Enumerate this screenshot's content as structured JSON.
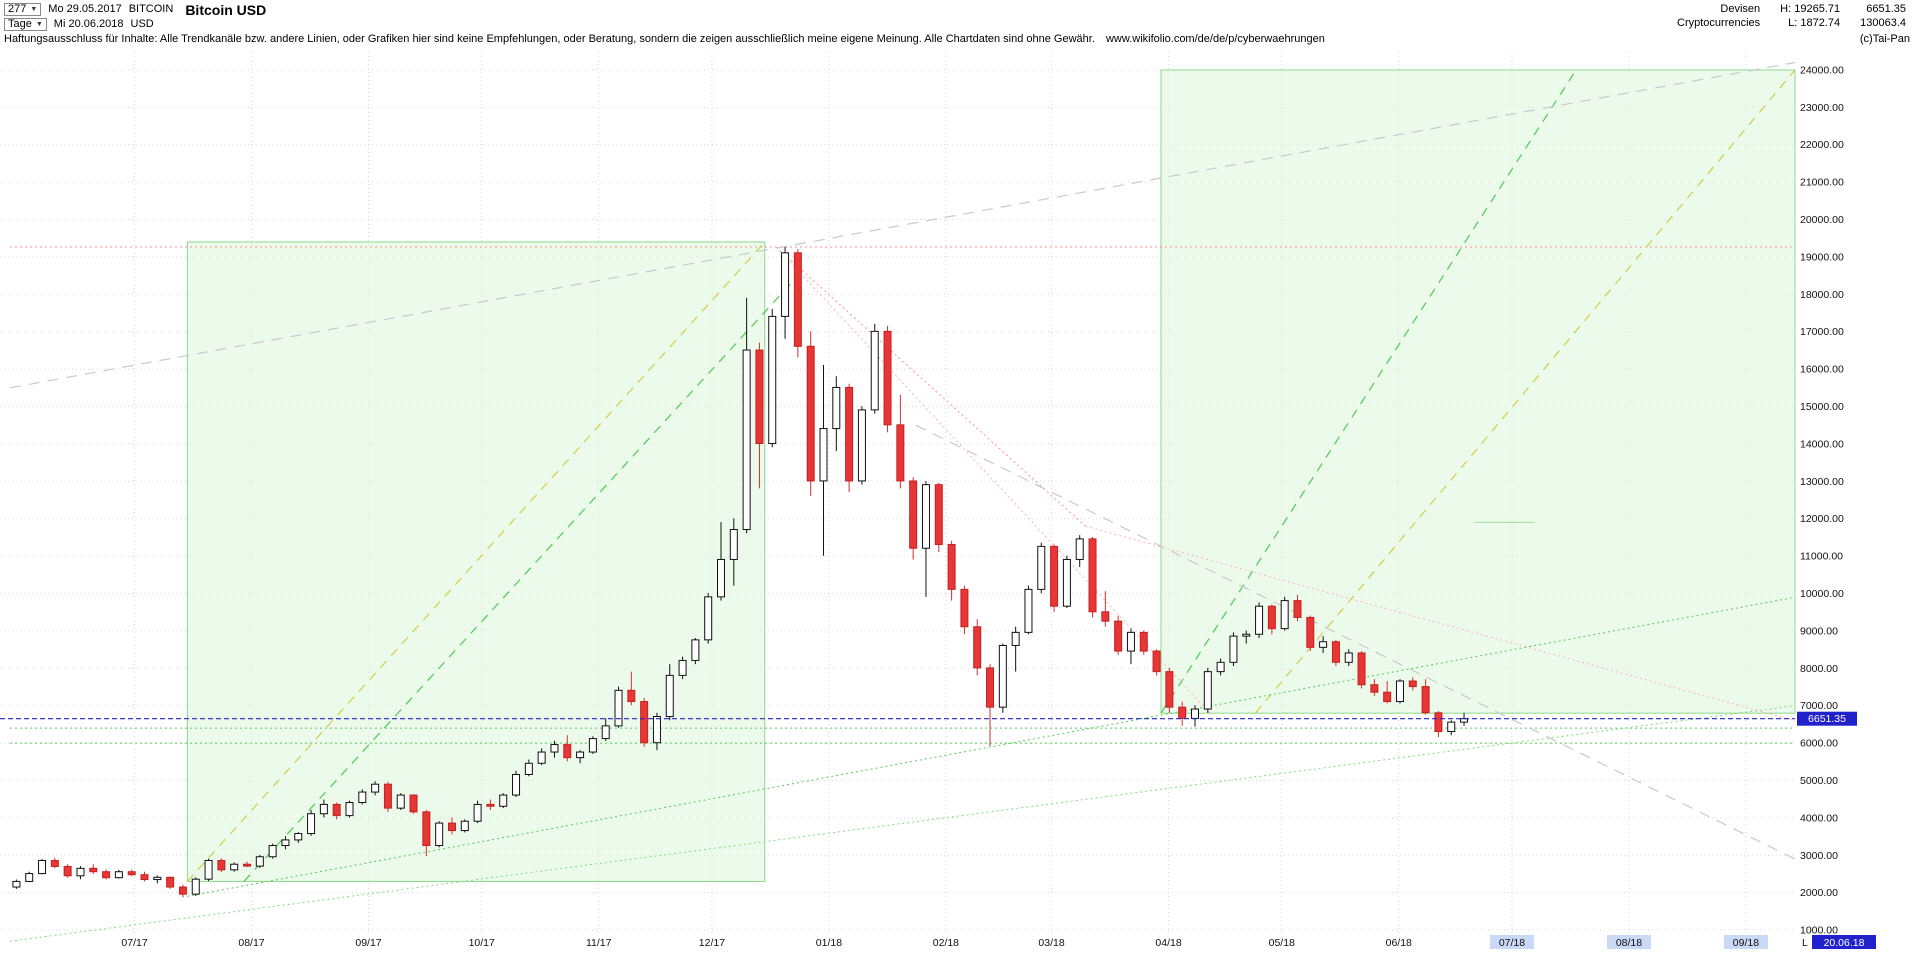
{
  "header": {
    "bars_count": "277",
    "date_from": "Mo 29.05.2017",
    "symbol": "BITCOIN",
    "period": "Tage",
    "date_to": "Mi 20.06.2018",
    "currency": "USD",
    "title": "Bitcoin USD",
    "category": "Devisen",
    "subcategory": "Cryptocurrencies",
    "high": "H: 19265.71",
    "low": "L: 1872.74",
    "last": "6651.35",
    "volume": "130063.4"
  },
  "disclaimer": {
    "text": "Haftungsausschluss für Inhalte: Alle Trendkanäle bzw. andere Linien, oder Grafiken hier sind keine Empfehlungen, oder Beratung, sondern die zeigen ausschließlich meine eigene Meinung. Alle Chartdaten sind ohne Gewähr.",
    "url": "www.wikifolio.com/de/de/p/cyberwaehrungen",
    "copyright": "(c)Tai-Pan"
  },
  "icons": {
    "dropdown": "▼"
  },
  "chart_data": {
    "type": "candlestick",
    "title": "Bitcoin USD",
    "x_unit": "days since 2017-05-29",
    "x_domain": [
      0,
      473
    ],
    "y_domain": [
      600,
      24400
    ],
    "high": 19265.71,
    "low": 1872.74,
    "last": 6651.35,
    "grid": true,
    "y_ticks": [
      1000,
      2000,
      3000,
      4000,
      5000,
      6000,
      7000,
      8000,
      9000,
      10000,
      11000,
      12000,
      13000,
      14000,
      15000,
      16000,
      17000,
      18000,
      19000,
      20000,
      21000,
      22000,
      23000,
      24000
    ],
    "x_ticks": [
      {
        "d": 33,
        "label": "07/17"
      },
      {
        "d": 64,
        "label": "08/17"
      },
      {
        "d": 95,
        "label": "09/17"
      },
      {
        "d": 125,
        "label": "10/17"
      },
      {
        "d": 156,
        "label": "11/17"
      },
      {
        "d": 186,
        "label": "12/17"
      },
      {
        "d": 217,
        "label": "01/18"
      },
      {
        "d": 248,
        "label": "02/18"
      },
      {
        "d": 276,
        "label": "03/18"
      },
      {
        "d": 307,
        "label": "04/18"
      },
      {
        "d": 337,
        "label": "05/18"
      },
      {
        "d": 368,
        "label": "06/18"
      },
      {
        "d": 398,
        "label": "07/18",
        "future": true
      },
      {
        "d": 429,
        "label": "08/18",
        "future": true
      },
      {
        "d": 460,
        "label": "09/18",
        "future": true
      }
    ],
    "x_axis_end": {
      "marker": "L",
      "date": "20.06.18"
    },
    "last_price_line": {
      "price": 6651.35,
      "label": "6651.35",
      "color": "#2222cc"
    },
    "candle_step_days": 3.3947,
    "colors": {
      "up_fill": "#ffffff",
      "up_stroke": "#111111",
      "down_fill": "#e83535",
      "down_stroke": "#c22222",
      "wick_up": "#111111",
      "wick_down": "#d32f2f",
      "grid": "#d6d6d6",
      "future_label_bg": "#c9d9f6",
      "axis_text": "#111111"
    },
    "boxes": [
      {
        "name": "trend-channel-2017",
        "from": [
          47,
          2300
        ],
        "to": [
          200,
          19400
        ],
        "fill": "#ddf6dd",
        "opacity": 0.55,
        "stroke": "#8bd88b"
      },
      {
        "name": "trend-channel-2018",
        "from": [
          305,
          6800
        ],
        "to": [
          473,
          24000
        ],
        "fill": "#ddf6dd",
        "opacity": 0.55,
        "stroke": "#8bd88b"
      }
    ],
    "lines": [
      {
        "name": "ath-resistance",
        "from": [
          0,
          19265.71
        ],
        "to": [
          473,
          19265.71
        ],
        "color": "#ff9090",
        "dash": "2,3",
        "w": 1
      },
      {
        "name": "support-6400",
        "from": [
          0,
          6400
        ],
        "to": [
          473,
          6400
        ],
        "color": "#55cc55",
        "dash": "2,3",
        "w": 1
      },
      {
        "name": "support-6000",
        "from": [
          0,
          6000
        ],
        "to": [
          473,
          6000
        ],
        "color": "#55cc55",
        "dash": "2,3",
        "w": 1
      },
      {
        "name": "uptrend-2017-yellow",
        "from": [
          47,
          2300
        ],
        "to": [
          200,
          19400
        ],
        "color": "#cfcf45",
        "dash": "9,7",
        "w": 1.2
      },
      {
        "name": "uptrend-2017-green",
        "from": [
          62,
          2300
        ],
        "to": [
          207,
          18300
        ],
        "color": "#4ecb4e",
        "dash": "9,7",
        "w": 1.2
      },
      {
        "name": "projection-green",
        "from": [
          305,
          6800
        ],
        "to": [
          415,
          24000
        ],
        "color": "#4ecb4e",
        "dash": "9,7",
        "w": 1.2
      },
      {
        "name": "projection-yellow",
        "from": [
          330,
          6800
        ],
        "to": [
          473,
          24000
        ],
        "color": "#cfcf45",
        "dash": "9,7",
        "w": 1.2
      },
      {
        "name": "downtrend-red-1",
        "from": [
          203,
          19265
        ],
        "to": [
          285,
          11800
        ],
        "color": "#ff9090",
        "dash": "2,3",
        "w": 1
      },
      {
        "name": "downtrend-red-2",
        "from": [
          285,
          11800
        ],
        "to": [
          473,
          6600
        ],
        "color": "#ffb0b0",
        "dash": "2,3",
        "w": 1
      },
      {
        "name": "downtrend-red-3",
        "from": [
          203,
          19265
        ],
        "to": [
          318,
          6800
        ],
        "color": "#ffb0b0",
        "dash": "2,3",
        "w": 1
      },
      {
        "name": "longterm-gray-top",
        "from": [
          0,
          15500
        ],
        "to": [
          473,
          24200
        ],
        "color": "#c9c9c9",
        "dash": "11,8",
        "w": 1.2
      },
      {
        "name": "downtrend-gray",
        "from": [
          240,
          14500
        ],
        "to": [
          473,
          2900
        ],
        "color": "#c9c9c9",
        "dash": "11,8",
        "w": 1.2
      },
      {
        "name": "longterm-green-support",
        "from": [
          47,
          1900
        ],
        "to": [
          473,
          9900
        ],
        "color": "#55cc55",
        "dash": "2,3",
        "w": 1
      },
      {
        "name": "longterm-green-support-2",
        "from": [
          0,
          700
        ],
        "to": [
          473,
          7000
        ],
        "color": "#7edc7e",
        "dash": "2,3",
        "w": 1
      },
      {
        "name": "level-mark-11900",
        "from": [
          388,
          11900
        ],
        "to": [
          404,
          11900
        ],
        "color": "#9ae09a",
        "dash": "",
        "w": 1
      }
    ],
    "candles": [
      [
        2150,
        2350,
        2100,
        2300
      ],
      [
        2300,
        2560,
        2280,
        2510
      ],
      [
        2510,
        2900,
        2490,
        2860
      ],
      [
        2860,
        2930,
        2650,
        2700
      ],
      [
        2700,
        2760,
        2400,
        2450
      ],
      [
        2450,
        2710,
        2360,
        2650
      ],
      [
        2650,
        2760,
        2500,
        2560
      ],
      [
        2560,
        2620,
        2350,
        2400
      ],
      [
        2400,
        2610,
        2380,
        2560
      ],
      [
        2560,
        2620,
        2440,
        2480
      ],
      [
        2480,
        2560,
        2300,
        2350
      ],
      [
        2350,
        2460,
        2250,
        2410
      ],
      [
        2410,
        2430,
        2100,
        2150
      ],
      [
        2150,
        2210,
        1873,
        1960
      ],
      [
        1960,
        2410,
        1910,
        2360
      ],
      [
        2360,
        2910,
        2310,
        2860
      ],
      [
        2860,
        2920,
        2550,
        2610
      ],
      [
        2610,
        2810,
        2560,
        2760
      ],
      [
        2760,
        2830,
        2680,
        2710
      ],
      [
        2710,
        3010,
        2660,
        2960
      ],
      [
        2960,
        3310,
        2910,
        3260
      ],
      [
        3260,
        3510,
        3160,
        3410
      ],
      [
        3410,
        3620,
        3330,
        3580
      ],
      [
        3580,
        4210,
        3520,
        4110
      ],
      [
        4110,
        4490,
        4010,
        4360
      ],
      [
        4360,
        4410,
        3960,
        4060
      ],
      [
        4060,
        4460,
        4010,
        4410
      ],
      [
        4410,
        4760,
        4360,
        4690
      ],
      [
        4690,
        4980,
        4600,
        4900
      ],
      [
        4900,
        4960,
        4160,
        4260
      ],
      [
        4260,
        4660,
        4210,
        4610
      ],
      [
        4610,
        4630,
        4110,
        4160
      ],
      [
        4160,
        4210,
        2980,
        3260
      ],
      [
        3260,
        3910,
        3210,
        3860
      ],
      [
        3860,
        4010,
        3560,
        3660
      ],
      [
        3660,
        3960,
        3610,
        3910
      ],
      [
        3910,
        4460,
        3860,
        4360
      ],
      [
        4360,
        4490,
        4210,
        4310
      ],
      [
        4310,
        4660,
        4260,
        4610
      ],
      [
        4610,
        5260,
        4560,
        5160
      ],
      [
        5160,
        5560,
        5110,
        5460
      ],
      [
        5460,
        5860,
        5410,
        5760
      ],
      [
        5760,
        6060,
        5610,
        5960
      ],
      [
        5960,
        6210,
        5510,
        5610
      ],
      [
        5610,
        5810,
        5460,
        5760
      ],
      [
        5760,
        6180,
        5710,
        6120
      ],
      [
        6120,
        6660,
        6060,
        6460
      ],
      [
        6460,
        7510,
        6410,
        7410
      ],
      [
        7410,
        7910,
        7010,
        7110
      ],
      [
        7110,
        7210,
        5900,
        6010
      ],
      [
        6010,
        6810,
        5810,
        6710
      ],
      [
        6710,
        8110,
        6610,
        7810
      ],
      [
        7810,
        8310,
        7710,
        8210
      ],
      [
        8210,
        8810,
        8110,
        8760
      ],
      [
        8760,
        10010,
        8660,
        9910
      ],
      [
        9910,
        11910,
        9810,
        10910
      ],
      [
        10910,
        12010,
        10210,
        11710
      ],
      [
        11710,
        17910,
        11610,
        16510
      ],
      [
        16510,
        16710,
        12810,
        14010
      ],
      [
        14010,
        17610,
        13910,
        17410
      ],
      [
        17410,
        19265,
        16810,
        19110
      ],
      [
        19110,
        19210,
        16310,
        16610
      ],
      [
        16610,
        17010,
        12610,
        13010
      ],
      [
        13010,
        16110,
        11010,
        14410
      ],
      [
        14410,
        15810,
        13810,
        15510
      ],
      [
        15510,
        15610,
        12710,
        13010
      ],
      [
        13010,
        15010,
        12910,
        14910
      ],
      [
        14910,
        17210,
        14810,
        17010
      ],
      [
        17010,
        17160,
        14310,
        14510
      ],
      [
        14510,
        15310,
        12810,
        13010
      ],
      [
        13010,
        13110,
        10910,
        11210
      ],
      [
        11210,
        13010,
        9910,
        12910
      ],
      [
        12910,
        12960,
        11110,
        11310
      ],
      [
        11310,
        11410,
        9810,
        10110
      ],
      [
        10110,
        10210,
        8910,
        9110
      ],
      [
        9110,
        9310,
        7810,
        8010
      ],
      [
        8010,
        8110,
        5920,
        6960
      ],
      [
        6960,
        8660,
        6810,
        8610
      ],
      [
        8610,
        9110,
        7910,
        8960
      ],
      [
        8960,
        10210,
        8910,
        10110
      ],
      [
        10110,
        11360,
        10010,
        11260
      ],
      [
        11260,
        11310,
        9510,
        9660
      ],
      [
        9660,
        11010,
        9610,
        10910
      ],
      [
        10910,
        11560,
        10710,
        11460
      ],
      [
        11460,
        11510,
        9360,
        9510
      ],
      [
        9510,
        10060,
        9110,
        9260
      ],
      [
        9260,
        9410,
        8360,
        8460
      ],
      [
        8460,
        9060,
        8110,
        8960
      ],
      [
        8960,
        9010,
        8360,
        8460
      ],
      [
        8460,
        8510,
        7810,
        7910
      ],
      [
        7910,
        8010,
        6810,
        6960
      ],
      [
        6960,
        7110,
        6460,
        6660
      ],
      [
        6660,
        7010,
        6440,
        6910
      ],
      [
        6910,
        8010,
        6810,
        7910
      ],
      [
        7910,
        8260,
        7810,
        8160
      ],
      [
        8160,
        8960,
        8060,
        8860
      ],
      [
        8860,
        9010,
        8660,
        8910
      ],
      [
        8910,
        9760,
        8810,
        9660
      ],
      [
        9660,
        9710,
        8910,
        9060
      ],
      [
        9060,
        9910,
        9010,
        9810
      ],
      [
        9810,
        9960,
        9260,
        9360
      ],
      [
        9360,
        9410,
        8460,
        8560
      ],
      [
        8560,
        8860,
        8410,
        8710
      ],
      [
        8710,
        8760,
        8060,
        8160
      ],
      [
        8160,
        8510,
        8060,
        8410
      ],
      [
        8410,
        8460,
        7460,
        7560
      ],
      [
        7560,
        7710,
        7260,
        7360
      ],
      [
        7360,
        7660,
        7060,
        7110
      ],
      [
        7110,
        7710,
        7060,
        7660
      ],
      [
        7660,
        7760,
        7410,
        7510
      ],
      [
        7510,
        7710,
        6760,
        6810
      ],
      [
        6810,
        6860,
        6160,
        6310
      ],
      [
        6310,
        6610,
        6210,
        6560
      ],
      [
        6560,
        6810,
        6460,
        6651
      ]
    ]
  }
}
